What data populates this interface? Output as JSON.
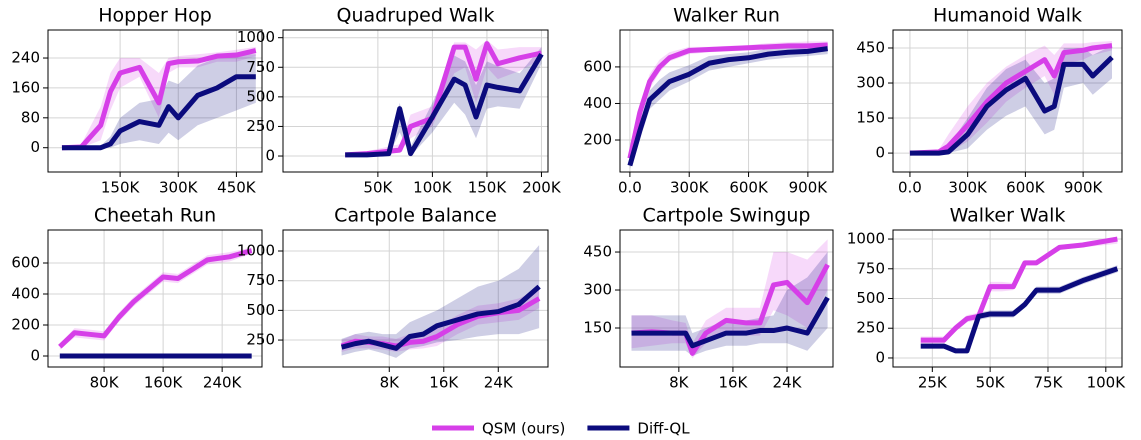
{
  "chart_data": [
    {
      "type": "line",
      "title": "Hopper Hop",
      "x": [
        0,
        50000,
        100000,
        125000,
        150000,
        200000,
        250000,
        275000,
        300000,
        350000,
        400000,
        450000,
        500000
      ],
      "xlim": [
        -36000,
        516000
      ],
      "xticks": [
        {
          "value": 150000,
          "label": "150K"
        },
        {
          "value": 300000,
          "label": "300K"
        },
        {
          "value": 450000,
          "label": "450K"
        }
      ],
      "ylim": [
        -65,
        315
      ],
      "yticks": [
        0,
        80,
        160,
        240
      ],
      "grid": true,
      "series": [
        {
          "name": "QSM (ours)",
          "color": "#d63fe8",
          "values": [
            0,
            2,
            60,
            150,
            200,
            215,
            120,
            225,
            230,
            232,
            245,
            248,
            260
          ],
          "lower": [
            0,
            0,
            20,
            100,
            160,
            190,
            80,
            200,
            215,
            215,
            230,
            230,
            245
          ],
          "upper": [
            0,
            10,
            110,
            200,
            240,
            240,
            200,
            240,
            245,
            250,
            255,
            262,
            270
          ]
        },
        {
          "name": "Diff-QL",
          "color": "#0b0b7d",
          "values": [
            0,
            0,
            0,
            10,
            45,
            70,
            60,
            110,
            80,
            140,
            160,
            190,
            190
          ],
          "lower": [
            0,
            0,
            0,
            0,
            10,
            20,
            10,
            40,
            20,
            60,
            80,
            100,
            120
          ],
          "upper": [
            0,
            5,
            5,
            30,
            80,
            120,
            130,
            180,
            170,
            220,
            240,
            250,
            250
          ]
        }
      ]
    },
    {
      "type": "line",
      "title": "Quadruped Walk",
      "x": [
        20000,
        40000,
        60000,
        70000,
        80000,
        100000,
        120000,
        130000,
        140000,
        150000,
        160000,
        180000,
        200000
      ],
      "xlim": [
        -37000,
        206000
      ],
      "xticks": [
        {
          "value": 50000,
          "label": "50K"
        },
        {
          "value": 100000,
          "label": "100K"
        },
        {
          "value": 150000,
          "label": "150K"
        },
        {
          "value": 200000,
          "label": "200K"
        }
      ],
      "ylim": [
        -135,
        1065
      ],
      "yticks": [
        0,
        250,
        500,
        750,
        1000
      ],
      "grid": true,
      "series": [
        {
          "name": "QSM (ours)",
          "color": "#d63fe8",
          "values": [
            10,
            20,
            40,
            50,
            250,
            320,
            920,
            920,
            650,
            950,
            780,
            830,
            870
          ],
          "lower": [
            0,
            10,
            20,
            30,
            150,
            250,
            700,
            750,
            450,
            750,
            650,
            720,
            820
          ],
          "upper": [
            20,
            40,
            80,
            100,
            350,
            420,
            960,
            960,
            900,
            980,
            900,
            920,
            920
          ]
        },
        {
          "name": "Diff-QL",
          "color": "#0b0b7d",
          "values": [
            10,
            10,
            20,
            400,
            20,
            330,
            650,
            600,
            330,
            600,
            580,
            550,
            860
          ],
          "lower": [
            0,
            0,
            5,
            200,
            0,
            200,
            450,
            350,
            150,
            400,
            420,
            400,
            780
          ],
          "upper": [
            20,
            20,
            40,
            450,
            80,
            450,
            850,
            800,
            600,
            800,
            760,
            700,
            920
          ]
        }
      ]
    },
    {
      "type": "line",
      "title": "Walker Run",
      "x": [
        0,
        50000,
        100000,
        150000,
        200000,
        300000,
        400000,
        500000,
        600000,
        700000,
        800000,
        900000,
        1000000
      ],
      "xlim": [
        -50000,
        1027000
      ],
      "xticks": [
        {
          "value": 0,
          "label": "0.0"
        },
        {
          "value": 300000,
          "label": "300K"
        },
        {
          "value": 600000,
          "label": "600K"
        },
        {
          "value": 900000,
          "label": "900K"
        }
      ],
      "ylim": [
        25,
        802
      ],
      "yticks": [
        200,
        400,
        600
      ],
      "grid": true,
      "series": [
        {
          "name": "QSM (ours)",
          "color": "#d63fe8",
          "values": [
            100,
            350,
            520,
            600,
            650,
            690,
            695,
            700,
            705,
            710,
            715,
            715,
            720
          ],
          "lower": [
            80,
            300,
            480,
            570,
            630,
            670,
            680,
            685,
            690,
            695,
            700,
            695,
            690
          ],
          "upper": [
            130,
            400,
            560,
            640,
            680,
            710,
            710,
            715,
            720,
            730,
            735,
            740,
            740
          ]
        },
        {
          "name": "Diff-QL",
          "color": "#0b0b7d",
          "values": [
            60,
            250,
            420,
            470,
            520,
            560,
            620,
            640,
            650,
            670,
            680,
            685,
            700
          ],
          "lower": [
            40,
            200,
            370,
            420,
            470,
            520,
            580,
            600,
            620,
            640,
            650,
            660,
            670
          ],
          "upper": [
            90,
            300,
            470,
            530,
            570,
            610,
            660,
            670,
            680,
            700,
            710,
            715,
            730
          ]
        }
      ]
    },
    {
      "type": "line",
      "title": "Humanoid Walk",
      "x": [
        0,
        150000,
        200000,
        300000,
        400000,
        500000,
        600000,
        700000,
        750000,
        800000,
        900000,
        950000,
        1050000
      ],
      "xlim": [
        -88000,
        1102000
      ],
      "xticks": [
        {
          "value": 0,
          "label": "0.0"
        },
        {
          "value": 300000,
          "label": "300K"
        },
        {
          "value": 600000,
          "label": "600K"
        },
        {
          "value": 900000,
          "label": "900K"
        }
      ],
      "ylim": [
        -81,
        527
      ],
      "yticks": [
        0,
        150,
        300,
        450
      ],
      "grid": true,
      "series": [
        {
          "name": "QSM (ours)",
          "color": "#d63fe8",
          "values": [
            0,
            5,
            30,
            120,
            220,
            300,
            350,
            400,
            330,
            430,
            440,
            450,
            460
          ],
          "lower": [
            0,
            0,
            0,
            50,
            130,
            220,
            280,
            330,
            250,
            380,
            400,
            420,
            440
          ],
          "upper": [
            5,
            15,
            80,
            200,
            300,
            370,
            420,
            460,
            420,
            470,
            470,
            475,
            480
          ]
        },
        {
          "name": "Diff-QL",
          "color": "#0b0b7d",
          "values": [
            0,
            0,
            5,
            80,
            200,
            270,
            320,
            180,
            200,
            380,
            380,
            330,
            410
          ],
          "lower": [
            0,
            0,
            0,
            20,
            100,
            160,
            200,
            80,
            100,
            280,
            300,
            250,
            320
          ],
          "upper": [
            0,
            5,
            30,
            150,
            280,
            360,
            400,
            300,
            320,
            450,
            450,
            420,
            460
          ]
        }
      ]
    },
    {
      "type": "line",
      "title": "Cheetah Run",
      "x": [
        20000,
        40000,
        60000,
        80000,
        100000,
        120000,
        140000,
        160000,
        180000,
        200000,
        220000,
        250000,
        280000
      ],
      "xlim": [
        4000,
        294000
      ],
      "xticks": [
        {
          "value": 80000,
          "label": "80K"
        },
        {
          "value": 160000,
          "label": "160K"
        },
        {
          "value": 240000,
          "label": "240K"
        }
      ],
      "ylim": [
        -71,
        813
      ],
      "yticks": [
        0,
        200,
        400,
        600
      ],
      "grid": true,
      "series": [
        {
          "name": "QSM (ours)",
          "color": "#d63fe8",
          "values": [
            60,
            150,
            140,
            130,
            250,
            350,
            430,
            510,
            500,
            560,
            620,
            640,
            680
          ],
          "lower": [
            40,
            120,
            110,
            100,
            220,
            320,
            400,
            480,
            470,
            530,
            590,
            610,
            660
          ],
          "upper": [
            80,
            180,
            170,
            160,
            280,
            380,
            460,
            540,
            530,
            590,
            650,
            670,
            700
          ]
        },
        {
          "name": "Diff-QL",
          "color": "#0b0b7d",
          "values": [
            0,
            0,
            0,
            0,
            0,
            0,
            0,
            0,
            0,
            0,
            0,
            0,
            0
          ],
          "lower": [
            0,
            0,
            0,
            0,
            0,
            0,
            0,
            0,
            0,
            0,
            0,
            0,
            0
          ],
          "upper": [
            0,
            0,
            0,
            0,
            0,
            0,
            0,
            0,
            0,
            0,
            0,
            0,
            0
          ]
        }
      ]
    },
    {
      "type": "line",
      "title": "Cartpole Balance",
      "x": [
        1000,
        3000,
        5000,
        7000,
        9000,
        11000,
        13000,
        15000,
        18000,
        21000,
        24000,
        27000,
        30000
      ],
      "xlim": [
        -7600,
        31300
      ],
      "xticks": [
        {
          "value": 8000,
          "label": "8K"
        },
        {
          "value": 16000,
          "label": "16K"
        },
        {
          "value": 24000,
          "label": "24K"
        }
      ],
      "ylim": [
        23,
        1177
      ],
      "yticks": [
        250,
        500,
        750,
        1000
      ],
      "grid": true,
      "series": [
        {
          "name": "QSM (ours)",
          "color": "#d63fe8",
          "values": [
            200,
            240,
            230,
            220,
            200,
            230,
            240,
            280,
            380,
            450,
            480,
            500,
            600
          ],
          "lower": [
            150,
            180,
            180,
            170,
            150,
            170,
            180,
            200,
            300,
            380,
            400,
            420,
            520
          ],
          "upper": [
            250,
            300,
            280,
            280,
            260,
            300,
            320,
            360,
            460,
            540,
            560,
            600,
            680
          ]
        },
        {
          "name": "Diff-QL",
          "color": "#0b0b7d",
          "values": [
            190,
            220,
            240,
            210,
            180,
            280,
            300,
            370,
            420,
            470,
            490,
            550,
            700
          ],
          "lower": [
            120,
            150,
            170,
            140,
            100,
            180,
            200,
            230,
            250,
            280,
            300,
            300,
            350
          ],
          "upper": [
            260,
            300,
            320,
            300,
            300,
            400,
            450,
            500,
            600,
            700,
            750,
            850,
            1050
          ]
        }
      ]
    },
    {
      "type": "line",
      "title": "Cartpole Swingup",
      "x": [
        1000,
        4000,
        7000,
        9000,
        10000,
        12000,
        15000,
        18000,
        20000,
        22000,
        24000,
        27000,
        30000
      ],
      "xlim": [
        -700,
        30800
      ],
      "xticks": [
        {
          "value": 8000,
          "label": "8K"
        },
        {
          "value": 16000,
          "label": "16K"
        },
        {
          "value": 24000,
          "label": "24K"
        }
      ],
      "ylim": [
        -4,
        537
      ],
      "yticks": [
        150,
        300,
        450
      ],
      "grid": true,
      "series": [
        {
          "name": "QSM (ours)",
          "color": "#d63fe8",
          "values": [
            130,
            135,
            130,
            130,
            50,
            130,
            180,
            170,
            170,
            320,
            330,
            250,
            400
          ],
          "lower": [
            70,
            80,
            90,
            90,
            30,
            90,
            130,
            120,
            120,
            220,
            200,
            150,
            300
          ],
          "upper": [
            200,
            200,
            180,
            170,
            90,
            180,
            230,
            230,
            230,
            450,
            450,
            420,
            500
          ]
        },
        {
          "name": "Diff-QL",
          "color": "#0b0b7d",
          "values": [
            130,
            130,
            130,
            130,
            80,
            100,
            130,
            130,
            140,
            140,
            150,
            130,
            270
          ],
          "lower": [
            60,
            60,
            60,
            60,
            40,
            60,
            80,
            80,
            90,
            90,
            90,
            60,
            150
          ],
          "upper": [
            200,
            200,
            200,
            200,
            130,
            150,
            180,
            180,
            190,
            200,
            300,
            350,
            450
          ]
        }
      ]
    },
    {
      "type": "line",
      "title": "Walker Walk",
      "x": [
        20000,
        30000,
        35000,
        40000,
        45000,
        50000,
        55000,
        60000,
        65000,
        70000,
        80000,
        90000,
        105000
      ],
      "xlim": [
        8000,
        107000
      ],
      "xticks": [
        {
          "value": 25000,
          "label": "25K"
        },
        {
          "value": 50000,
          "label": "50K"
        },
        {
          "value": 75000,
          "label": "75K"
        },
        {
          "value": 100000,
          "label": "100K"
        }
      ],
      "ylim": [
        -76,
        1076
      ],
      "yticks": [
        0,
        250,
        500,
        750,
        1000
      ],
      "grid": true,
      "series": [
        {
          "name": "QSM (ours)",
          "color": "#d63fe8",
          "values": [
            150,
            150,
            250,
            330,
            350,
            600,
            600,
            600,
            800,
            800,
            930,
            950,
            1000
          ],
          "lower": [
            120,
            120,
            220,
            300,
            320,
            560,
            560,
            570,
            780,
            780,
            910,
            930,
            960
          ],
          "upper": [
            180,
            180,
            280,
            360,
            380,
            640,
            640,
            630,
            820,
            820,
            950,
            970,
            1020
          ]
        },
        {
          "name": "Diff-QL",
          "color": "#0b0b7d",
          "values": [
            100,
            100,
            60,
            60,
            350,
            370,
            370,
            370,
            450,
            570,
            570,
            650,
            750
          ],
          "lower": [
            80,
            80,
            50,
            50,
            320,
            340,
            340,
            340,
            420,
            540,
            540,
            620,
            720
          ],
          "upper": [
            120,
            120,
            80,
            80,
            380,
            400,
            400,
            400,
            480,
            600,
            600,
            680,
            780
          ]
        }
      ]
    }
  ]
}
